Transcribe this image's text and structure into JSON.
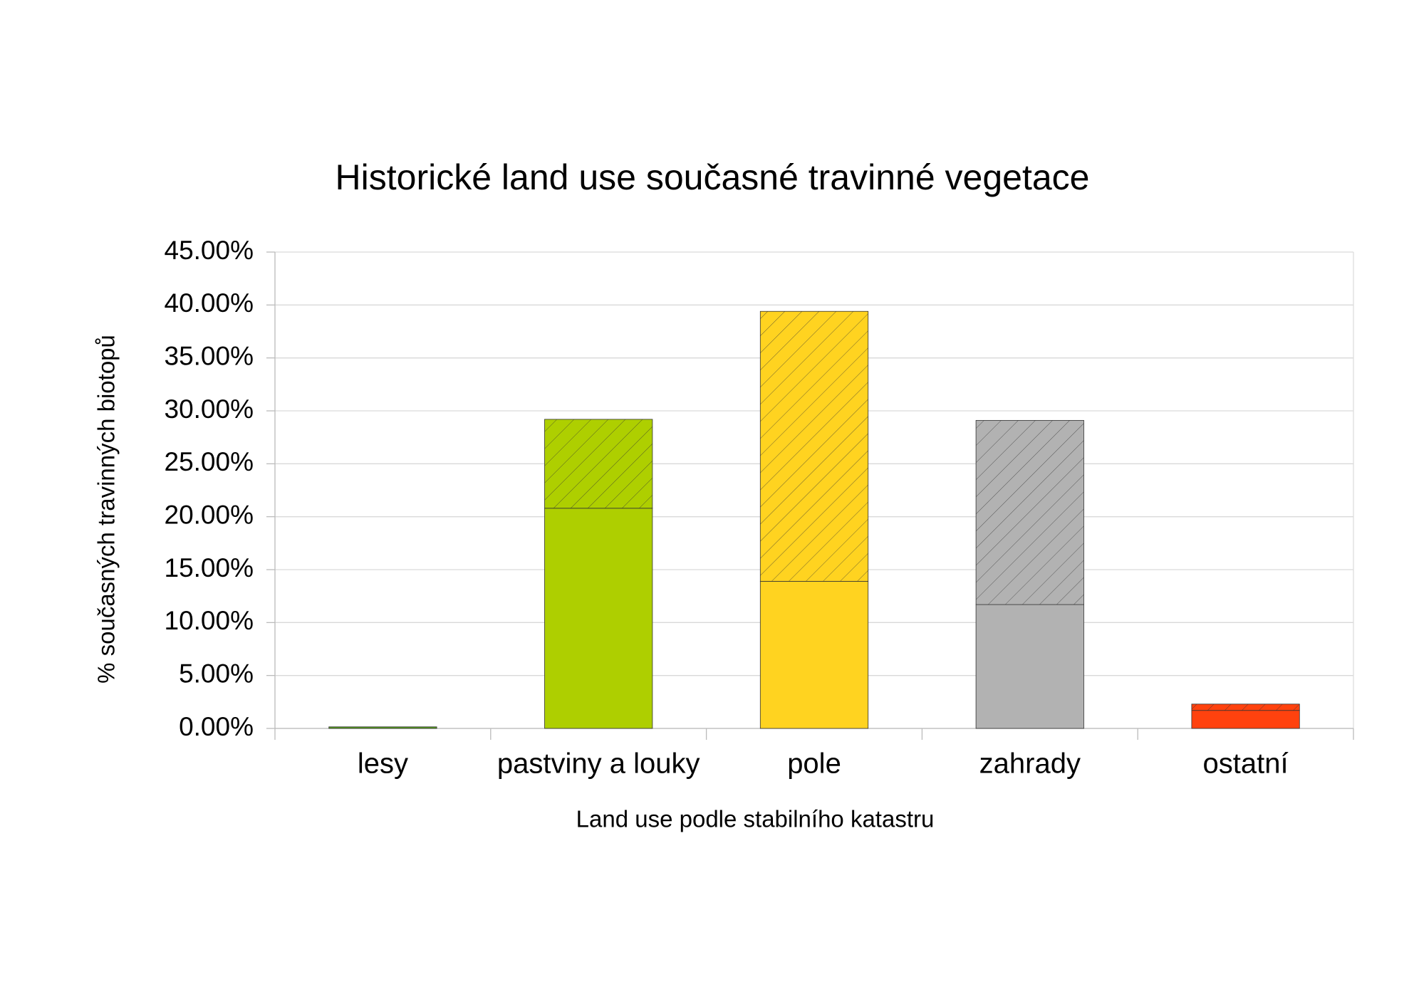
{
  "chart_data": {
    "type": "stacked_bar",
    "title": "Historické land use současné travinné vegetace",
    "x_label": "Land use podle stabilního katastru",
    "y_label": "% současných travinných biotopů",
    "categories": [
      "lesy",
      "pastviny a louky",
      "pole",
      "zahrady",
      "ostatní"
    ],
    "colors": [
      "#579d1c",
      "#aecf00",
      "#ffd320",
      "#b2b2b2",
      "#ff420e"
    ],
    "series": [
      {
        "values": [
          0.15,
          20.8,
          13.9,
          11.7,
          1.7
        ],
        "hatch": false
      },
      {
        "values": [
          0,
          8.4,
          25.5,
          17.4,
          0.6
        ],
        "hatch": true
      }
    ],
    "ylim": [
      0,
      45
    ],
    "yticks": [
      {
        "value": 0,
        "label": "0.00%"
      },
      {
        "value": 5,
        "label": "5.00%"
      },
      {
        "value": 10,
        "label": "10.00%"
      },
      {
        "value": 15,
        "label": "15.00%"
      },
      {
        "value": 20,
        "label": "20.00%"
      },
      {
        "value": 25,
        "label": "25.00%"
      },
      {
        "value": 30,
        "label": "30.00%"
      },
      {
        "value": 35,
        "label": "35.00%"
      },
      {
        "value": 40,
        "label": "40.00%"
      },
      {
        "value": 45,
        "label": "45.00%"
      }
    ],
    "grid": true
  }
}
